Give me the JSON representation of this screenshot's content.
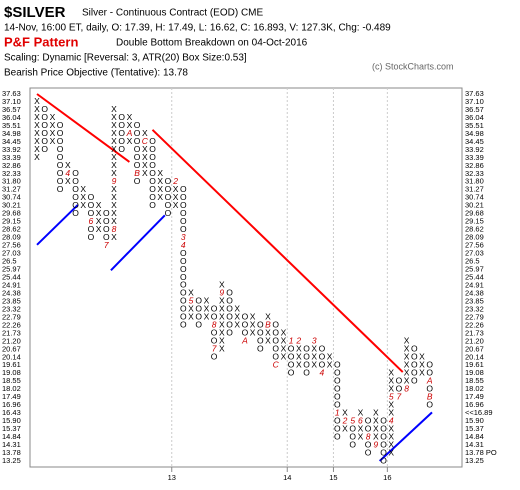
{
  "chart_data": {
    "type": "pf",
    "title": "$SILVER",
    "subtitle": "Silver - Continuous Contract (EOD)  CME",
    "quote": "14-Nov, 16:00 ET, daily, O: 17.39, H: 17.49, L: 16.62, C: 16.893, V: 127.3K, Chg: -0.489",
    "pattern_label": "P&F Pattern",
    "pattern": "Double Bottom Breakdown on 04-Oct-2016",
    "scaling": "Scaling: Dynamic [Reversal: 3, ATR(20) Box Size:0.53]",
    "copyright": "(c) StockCharts.com",
    "objective_text": "Bearish Price Objective (Tentative): 13.78",
    "box_size": 0.53,
    "ylim": [
      13.25,
      37.63
    ],
    "yticks": [
      37.63,
      {
        "value": 37.1,
        "label": "37.10"
      },
      36.57,
      36.04,
      35.51,
      34.98,
      34.45,
      33.92,
      33.39,
      32.86,
      32.33,
      {
        "value": 31.8,
        "label": "31.80"
      },
      31.27,
      30.74,
      30.21,
      29.68,
      29.15,
      28.62,
      28.09,
      27.56,
      27.03,
      26.5,
      25.97,
      25.44,
      24.91,
      24.38,
      23.85,
      23.32,
      22.79,
      22.26,
      21.73,
      {
        "value": 21.2,
        "label": "21.20"
      },
      20.67,
      20.14,
      19.61,
      19.08,
      18.55,
      18.02,
      17.49,
      16.96,
      16.43,
      {
        "value": 15.9,
        "label": "15.90"
      },
      15.37,
      14.84,
      14.31,
      13.78,
      13.25
    ],
    "current_price": {
      "value": 16.89,
      "label": "<<16.89"
    },
    "price_objective": {
      "value": 13.78,
      "label": "13.78 PO"
    },
    "highlight_color": "#d00000",
    "xticks": [
      {
        "value": 18,
        "label": "13"
      },
      {
        "value": 33,
        "label": "14"
      },
      {
        "value": 39,
        "label": "15"
      },
      {
        "value": 46,
        "label": "16"
      }
    ],
    "columns": [
      {
        "type": "X",
        "low": 33.39,
        "high": 37.1,
        "marks": []
      },
      {
        "type": "O",
        "low": 33.92,
        "high": 36.57,
        "marks": []
      },
      {
        "type": "X",
        "low": 34.45,
        "high": 36.04,
        "marks": []
      },
      {
        "type": "O",
        "low": 31.27,
        "high": 35.51,
        "marks": []
      },
      {
        "type": "X",
        "low": 31.8,
        "high": 32.86,
        "marks": [
          {
            "value": 32.33,
            "label": "4"
          }
        ]
      },
      {
        "type": "O",
        "low": 29.68,
        "high": 32.33,
        "marks": []
      },
      {
        "type": "X",
        "low": 30.21,
        "high": 31.27,
        "marks": []
      },
      {
        "type": "O",
        "low": 28.09,
        "high": 30.74,
        "marks": [
          {
            "value": 29.15,
            "label": "6"
          }
        ]
      },
      {
        "type": "X",
        "low": 28.62,
        "high": 30.21,
        "marks": []
      },
      {
        "type": "O",
        "low": 27.56,
        "high": 29.68,
        "marks": [
          {
            "value": 27.56,
            "label": "7"
          }
        ]
      },
      {
        "type": "X",
        "low": 28.09,
        "high": 36.57,
        "marks": [
          {
            "value": 28.62,
            "label": "8"
          },
          {
            "value": 31.8,
            "label": "9"
          }
        ]
      },
      {
        "type": "O",
        "low": 33.92,
        "high": 36.04,
        "marks": []
      },
      {
        "type": "X",
        "low": 34.45,
        "high": 36.04,
        "marks": [
          {
            "value": 34.98,
            "label": "A"
          }
        ]
      },
      {
        "type": "O",
        "low": 31.8,
        "high": 35.51,
        "marks": [
          {
            "value": 32.33,
            "label": "B"
          }
        ]
      },
      {
        "type": "X",
        "low": 32.33,
        "high": 34.98,
        "marks": [
          {
            "value": 34.45,
            "label": "C"
          }
        ]
      },
      {
        "type": "O",
        "low": 30.21,
        "high": 34.45,
        "marks": []
      },
      {
        "type": "X",
        "low": 30.74,
        "high": 32.33,
        "marks": []
      },
      {
        "type": "O",
        "low": 29.68,
        "high": 31.8,
        "marks": []
      },
      {
        "type": "X",
        "low": 30.21,
        "high": 31.8,
        "marks": [
          {
            "value": 31.8,
            "label": "2"
          }
        ]
      },
      {
        "type": "O",
        "low": 22.26,
        "high": 31.27,
        "marks": [
          {
            "value": 28.09,
            "label": "3"
          },
          {
            "value": 27.56,
            "label": "4"
          }
        ]
      },
      {
        "type": "X",
        "low": 22.79,
        "high": 24.38,
        "marks": [
          {
            "value": 23.85,
            "label": "5"
          }
        ]
      },
      {
        "type": "O",
        "low": 22.26,
        "high": 23.85,
        "marks": []
      },
      {
        "type": "X",
        "low": 22.79,
        "high": 23.85,
        "marks": []
      },
      {
        "type": "O",
        "low": 20.14,
        "high": 23.32,
        "marks": [
          {
            "value": 20.67,
            "label": "7"
          },
          {
            "value": 22.26,
            "label": "8"
          }
        ]
      },
      {
        "type": "X",
        "low": 20.67,
        "high": 24.91,
        "marks": [
          {
            "value": 24.38,
            "label": "9"
          }
        ]
      },
      {
        "type": "O",
        "low": 21.73,
        "high": 24.38,
        "marks": []
      },
      {
        "type": "X",
        "low": 22.26,
        "high": 23.32,
        "marks": []
      },
      {
        "type": "O",
        "low": 21.2,
        "high": 22.79,
        "marks": [
          {
            "value": 21.2,
            "label": "A"
          }
        ]
      },
      {
        "type": "X",
        "low": 21.73,
        "high": 22.79,
        "marks": []
      },
      {
        "type": "O",
        "low": 20.67,
        "high": 22.26,
        "marks": []
      },
      {
        "type": "X",
        "low": 21.2,
        "high": 22.79,
        "marks": [
          {
            "value": 22.26,
            "label": "B"
          }
        ]
      },
      {
        "type": "O",
        "low": 19.61,
        "high": 22.26,
        "marks": [
          {
            "value": 19.61,
            "label": "C"
          }
        ]
      },
      {
        "type": "X",
        "low": 20.14,
        "high": 21.73,
        "marks": []
      },
      {
        "type": "O",
        "low": 19.08,
        "high": 21.2,
        "marks": [
          {
            "value": 21.2,
            "label": "1"
          }
        ]
      },
      {
        "type": "X",
        "low": 19.61,
        "high": 21.2,
        "marks": [
          {
            "value": 21.2,
            "label": "2"
          }
        ]
      },
      {
        "type": "O",
        "low": 19.08,
        "high": 20.67,
        "marks": []
      },
      {
        "type": "X",
        "low": 19.61,
        "high": 21.2,
        "marks": [
          {
            "value": 21.2,
            "label": "3"
          }
        ]
      },
      {
        "type": "O",
        "low": 19.08,
        "high": 20.67,
        "marks": [
          {
            "value": 19.08,
            "label": "4"
          }
        ]
      },
      {
        "type": "X",
        "low": 19.61,
        "high": 20.14,
        "marks": []
      },
      {
        "type": "O",
        "low": 14.84,
        "high": 19.61,
        "marks": [
          {
            "value": 16.43,
            "label": "1"
          }
        ]
      },
      {
        "type": "X",
        "low": 15.37,
        "high": 16.43,
        "marks": [
          {
            "value": 15.9,
            "label": "2"
          }
        ]
      },
      {
        "type": "O",
        "low": 14.31,
        "high": 15.9,
        "marks": [
          {
            "value": 15.9,
            "label": "5"
          }
        ]
      },
      {
        "type": "X",
        "low": 14.84,
        "high": 16.43,
        "marks": [
          {
            "value": 15.9,
            "label": "6"
          }
        ]
      },
      {
        "type": "O",
        "low": 13.78,
        "high": 15.9,
        "marks": [
          {
            "value": 14.84,
            "label": "8"
          }
        ]
      },
      {
        "type": "X",
        "low": 14.31,
        "high": 16.43,
        "marks": [
          {
            "value": 14.31,
            "label": "9"
          }
        ]
      },
      {
        "type": "O",
        "low": 13.25,
        "high": 15.9,
        "marks": []
      },
      {
        "type": "X",
        "low": 13.78,
        "high": 19.08,
        "marks": [
          {
            "value": 15.9,
            "label": "4"
          },
          {
            "value": 17.49,
            "label": "5"
          }
        ]
      },
      {
        "type": "O",
        "low": 17.49,
        "high": 18.55,
        "marks": [
          {
            "value": 17.49,
            "label": "7"
          }
        ]
      },
      {
        "type": "X",
        "low": 18.02,
        "high": 21.2,
        "marks": [
          {
            "value": 18.02,
            "label": "8"
          }
        ]
      },
      {
        "type": "O",
        "low": 18.55,
        "high": 20.67,
        "marks": []
      },
      {
        "type": "X",
        "low": 19.08,
        "high": 20.14,
        "marks": []
      },
      {
        "type": "O",
        "low": 16.96,
        "high": 19.61,
        "marks": [
          {
            "value": 18.55,
            "label": "A"
          },
          {
            "value": 17.49,
            "label": "B"
          }
        ]
      }
    ],
    "trendlines": [
      {
        "color": "#ff0000",
        "x": [
          0,
          12
        ],
        "y": [
          37.63,
          33.12
        ]
      },
      {
        "color": "#ff0000",
        "x": [
          15,
          47.5
        ],
        "y": [
          35.25,
          19.16
        ]
      },
      {
        "color": "#0000ff",
        "x": [
          0,
          5.3
        ],
        "y": [
          27.61,
          30.26
        ]
      },
      {
        "color": "#0000ff",
        "x": [
          9.6,
          16.6
        ],
        "y": [
          25.92,
          29.57
        ]
      },
      {
        "color": "#0000ff",
        "x": [
          44.5,
          51.3
        ],
        "y": [
          13.25,
          16.48
        ]
      }
    ]
  }
}
